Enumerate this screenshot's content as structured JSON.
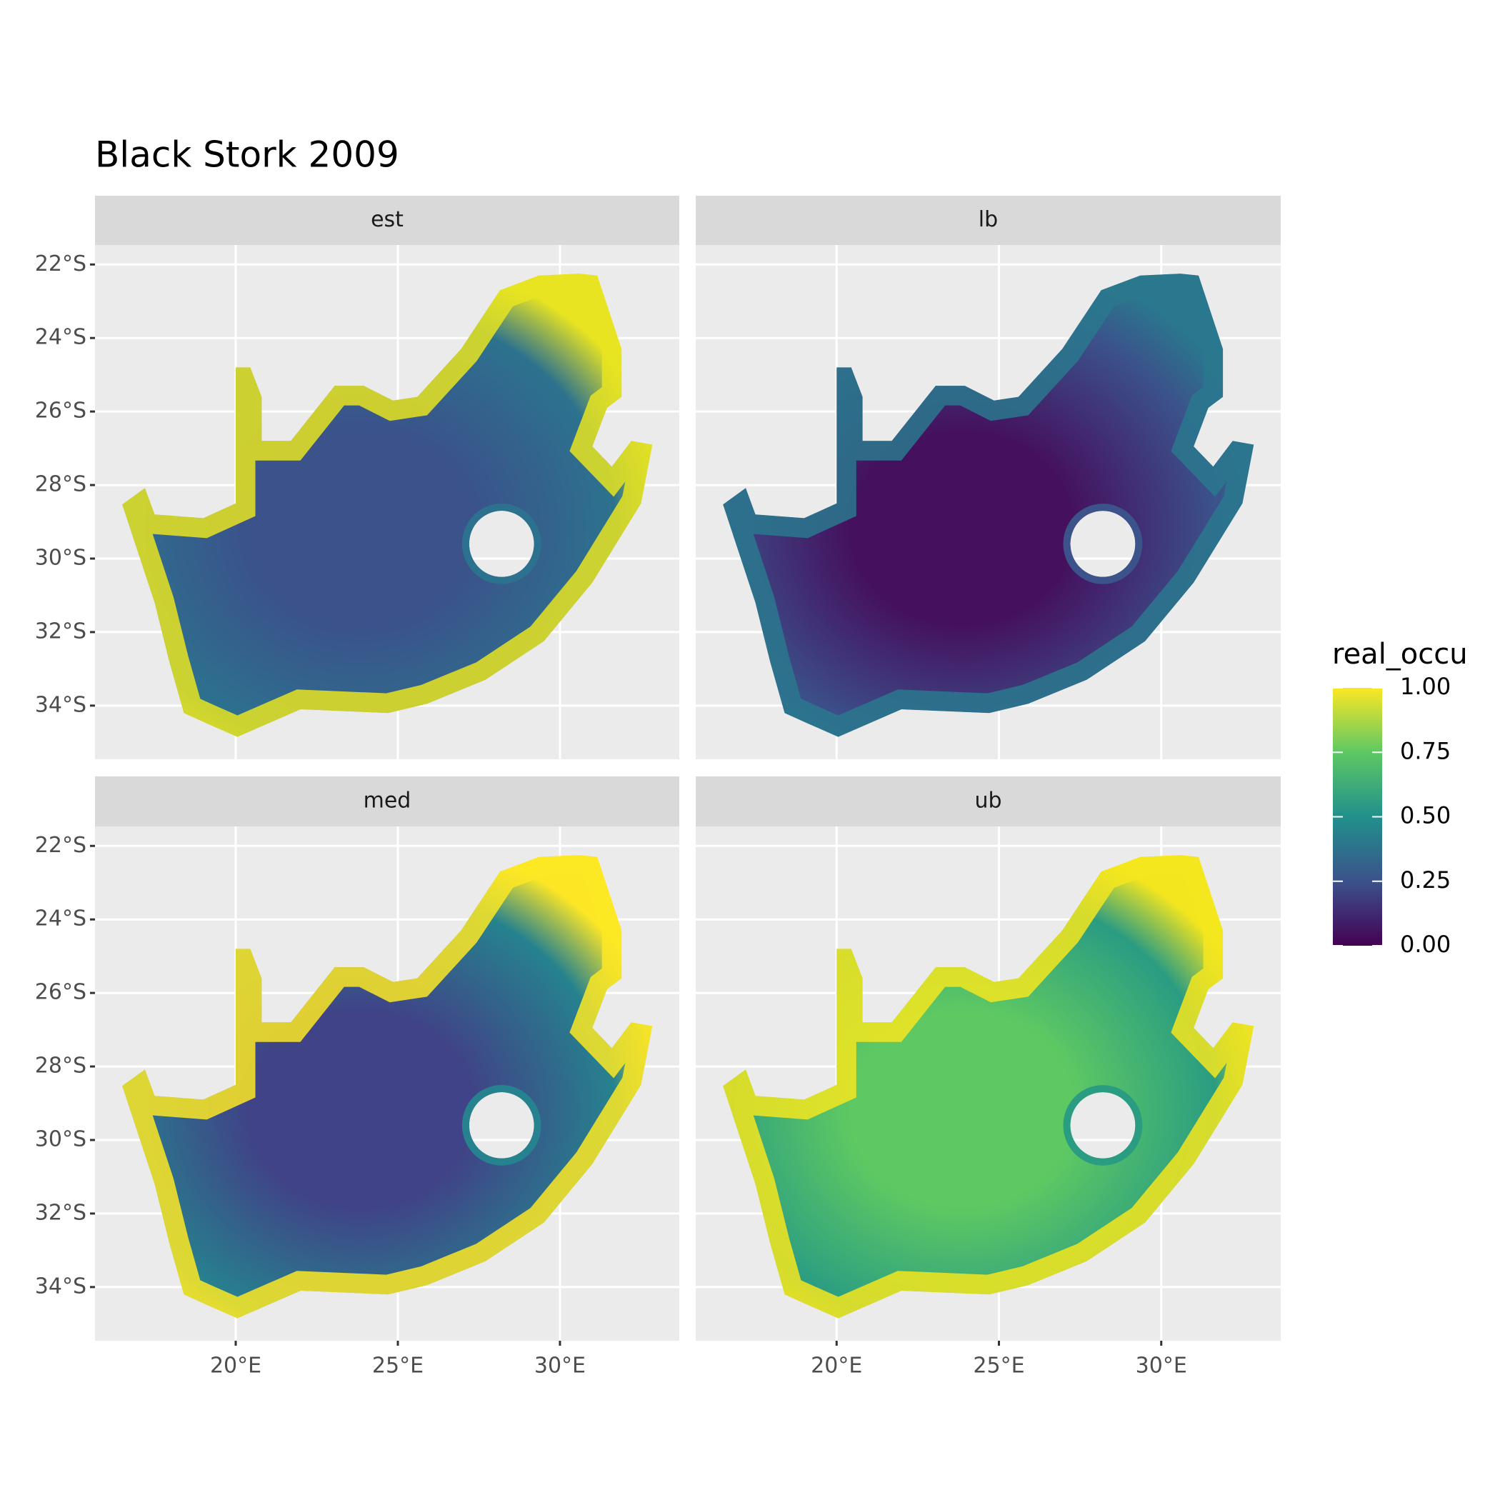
{
  "chart_data": {
    "type": "map",
    "title": "Black Stork 2009",
    "panels": [
      "est",
      "lb",
      "med",
      "ub"
    ],
    "xlim": [
      15.66,
      33.68
    ],
    "ylim": [
      -35.46,
      -21.47
    ],
    "xticks": [
      {
        "value": 20,
        "label": "20°E"
      },
      {
        "value": 25,
        "label": "25°E"
      },
      {
        "value": 30,
        "label": "30°E"
      }
    ],
    "yticks": [
      {
        "value": -22,
        "label": "22°S"
      },
      {
        "value": -24,
        "label": "24°S"
      },
      {
        "value": -26,
        "label": "26°S"
      },
      {
        "value": -28,
        "label": "28°S"
      },
      {
        "value": -30,
        "label": "30°S"
      },
      {
        "value": -32,
        "label": "32°S"
      },
      {
        "value": -34,
        "label": "34°S"
      }
    ],
    "grid": true,
    "legend": {
      "title": "real_occu",
      "colors": [
        "#440154",
        "#3b528b",
        "#21908c",
        "#5dc863",
        "#fde725"
      ],
      "limits": [
        0,
        1
      ],
      "ticks": [
        {
          "value": 0,
          "label": "0.00"
        },
        {
          "value": 0.25,
          "label": "0.25"
        },
        {
          "value": 0.5,
          "label": "0.50"
        },
        {
          "value": 0.75,
          "label": "0.75"
        },
        {
          "value": 1,
          "label": "1.00"
        }
      ]
    }
  }
}
